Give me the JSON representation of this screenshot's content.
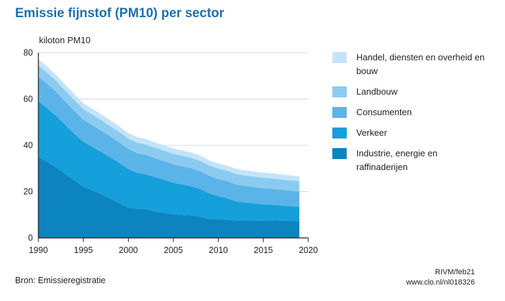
{
  "title": "Emissie fijnstof (PM10) per sector",
  "source": "Bron: Emissieregistratie",
  "credit": {
    "line1": "RIVM/feb21",
    "line2": "www.clo.nl/nl018326"
  },
  "colors": {
    "axis": "#1b1b1b",
    "grid": "#cfd8e3",
    "tick_text": "#222222",
    "brand": "#1f6fae"
  },
  "chart_data": {
    "type": "area",
    "stacked": true,
    "ylabel": "kiloton PM10",
    "xlabel": "",
    "xlim": [
      1990,
      2020
    ],
    "ylim": [
      0,
      80
    ],
    "xticks": [
      1990,
      1995,
      2000,
      2005,
      2010,
      2015,
      2020
    ],
    "yticks": [
      0,
      20,
      40,
      60,
      80
    ],
    "grid": "horizontal",
    "legend_position": "right",
    "x": [
      1990,
      1991,
      1992,
      1993,
      1994,
      1995,
      1996,
      1997,
      1998,
      1999,
      2000,
      2001,
      2002,
      2003,
      2004,
      2005,
      2006,
      2007,
      2008,
      2009,
      2010,
      2011,
      2012,
      2013,
      2014,
      2015,
      2016,
      2017,
      2018,
      2019
    ],
    "series": [
      {
        "name": "Industrie, energie en raffinaderijen",
        "color": "#0b84bf",
        "values": [
          35.0,
          32.8,
          30.4,
          27.6,
          24.8,
          22.2,
          20.5,
          18.8,
          17.0,
          15.0,
          13.0,
          12.6,
          12.4,
          11.4,
          10.8,
          10.2,
          9.9,
          9.7,
          9.2,
          8.2,
          8.0,
          7.8,
          7.5,
          7.4,
          7.4,
          7.5,
          7.6,
          7.5,
          7.4,
          7.3
        ]
      },
      {
        "name": "Verkeer",
        "color": "#159fdb",
        "values": [
          24.0,
          23.2,
          22.3,
          21.2,
          20.2,
          19.3,
          18.8,
          18.3,
          17.8,
          17.4,
          16.7,
          15.5,
          15.0,
          14.8,
          14.3,
          13.6,
          13.2,
          12.6,
          11.9,
          11.0,
          10.0,
          9.3,
          8.3,
          7.9,
          7.5,
          7.0,
          6.7,
          6.5,
          6.3,
          6.1
        ]
      },
      {
        "name": "Consumenten",
        "color": "#5bb4e7",
        "values": [
          10.7,
          10.5,
          10.3,
          10.1,
          9.8,
          9.6,
          9.4,
          9.2,
          9.0,
          8.9,
          8.7,
          8.5,
          8.4,
          8.2,
          8.1,
          8.0,
          7.9,
          7.8,
          7.7,
          7.6,
          7.5,
          7.4,
          7.3,
          7.2,
          7.1,
          7.0,
          6.9,
          6.8,
          6.7,
          6.6
        ]
      },
      {
        "name": "Landbouw",
        "color": "#8ccbf0",
        "values": [
          4.8,
          4.8,
          4.8,
          4.7,
          4.7,
          4.6,
          4.6,
          4.6,
          4.5,
          4.5,
          4.5,
          4.5,
          4.5,
          4.5,
          4.5,
          4.5,
          4.5,
          4.5,
          4.5,
          4.5,
          4.5,
          4.5,
          4.5,
          4.5,
          4.5,
          4.5,
          4.5,
          4.5,
          4.5,
          4.5
        ]
      },
      {
        "name": "Handel, diensten en overheid en bouw",
        "color": "#c3e4f8",
        "values": [
          2.7,
          2.7,
          2.6,
          2.6,
          2.6,
          2.5,
          2.5,
          2.5,
          2.5,
          2.4,
          2.4,
          2.4,
          2.4,
          2.3,
          2.3,
          2.3,
          2.3,
          2.3,
          2.3,
          2.2,
          2.2,
          2.2,
          2.2,
          2.2,
          2.2,
          2.2,
          2.2,
          2.1,
          2.1,
          2.1
        ]
      }
    ]
  }
}
